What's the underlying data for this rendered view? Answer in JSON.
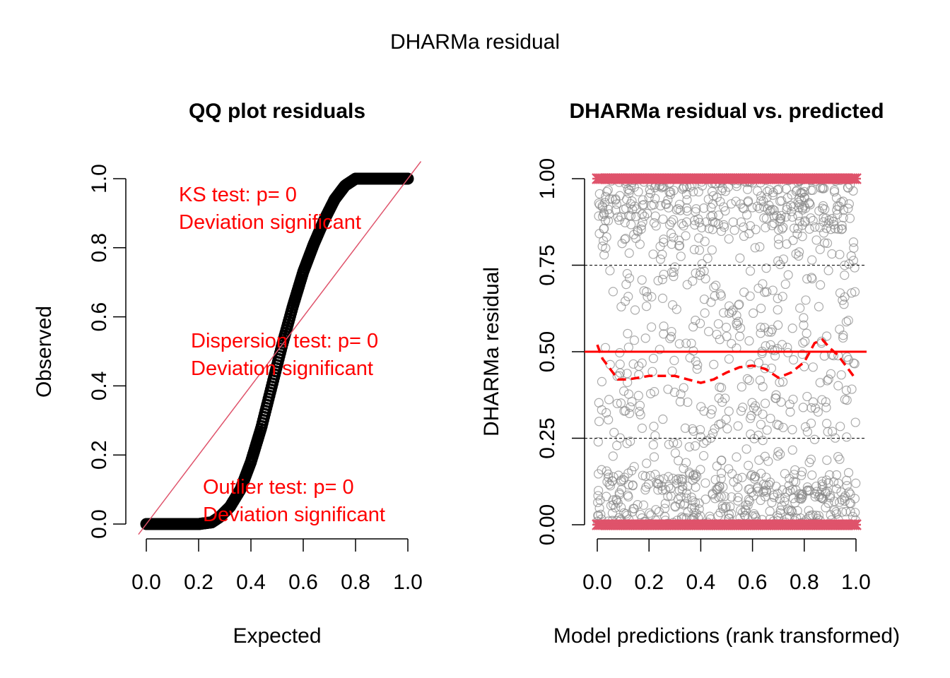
{
  "figure": {
    "suptitle": "DHARMa residual"
  },
  "colors": {
    "points_qq": "#000000",
    "reference_line": "#df536b",
    "test_text": "#ff0000",
    "scatter_points": "#888888",
    "outlier_marks": "#df536b",
    "mean_line": "#ff0000",
    "smooth_line": "#ff0000"
  },
  "chart_data": [
    {
      "type": "scatter",
      "title": "QQ plot residuals",
      "xlabel": "Expected",
      "ylabel": "Observed",
      "xlim": [
        0,
        1
      ],
      "ylim": [
        0,
        1
      ],
      "xticks": [
        "0.0",
        "0.2",
        "0.4",
        "0.6",
        "0.8",
        "1.0"
      ],
      "yticks": [
        "0.0",
        "0.2",
        "0.4",
        "0.6",
        "0.8",
        "1.0"
      ],
      "grid": false,
      "series": [
        {
          "x": [
            0.0,
            0.05,
            0.1,
            0.15,
            0.2,
            0.25,
            0.28,
            0.32,
            0.36,
            0.4,
            0.44,
            0.48,
            0.52,
            0.56,
            0.6,
            0.64,
            0.68,
            0.72,
            0.76,
            0.8,
            0.84,
            0.88,
            0.92,
            0.96,
            1.0
          ],
          "y": [
            0.0,
            0.0,
            0.0,
            0.0,
            0.0,
            0.005,
            0.02,
            0.05,
            0.1,
            0.18,
            0.28,
            0.4,
            0.52,
            0.63,
            0.73,
            0.81,
            0.88,
            0.94,
            0.98,
            1.0,
            1.0,
            1.0,
            1.0,
            1.0,
            1.0
          ]
        }
      ],
      "reference_line": {
        "x": [
          0,
          1
        ],
        "y": [
          0,
          1
        ]
      },
      "annotations": [
        {
          "lines": [
            "KS test: p= 0",
            "Deviation  significant"
          ]
        },
        {
          "lines": [
            "Dispersion test: p= 0",
            "Deviation  significant"
          ]
        },
        {
          "lines": [
            "Outlier test: p= 0",
            "Deviation  significant"
          ]
        }
      ]
    },
    {
      "type": "scatter",
      "title": "DHARMa residual vs. predicted",
      "xlabel": "Model predictions (rank transformed)",
      "ylabel": "DHARMa residual",
      "xlim": [
        0,
        1
      ],
      "ylim": [
        0,
        1
      ],
      "xticks": [
        "0.0",
        "0.2",
        "0.4",
        "0.6",
        "0.8",
        "1.0"
      ],
      "yticks": [
        "0.00",
        "0.25",
        "0.50",
        "0.75",
        "1.00"
      ],
      "grid": false,
      "hlines_dashed": [
        0.25,
        0.75
      ],
      "hline_solid": 0.5,
      "outliers": {
        "at_y": [
          0,
          1
        ]
      },
      "smooth": {
        "x": [
          0.0,
          0.02,
          0.05,
          0.08,
          0.12,
          0.2,
          0.3,
          0.4,
          0.45,
          0.5,
          0.55,
          0.6,
          0.65,
          0.7,
          0.75,
          0.8,
          0.84,
          0.87,
          0.9,
          0.93,
          0.96,
          1.0
        ],
        "y": [
          0.52,
          0.48,
          0.45,
          0.42,
          0.42,
          0.43,
          0.43,
          0.41,
          0.42,
          0.44,
          0.455,
          0.46,
          0.45,
          0.425,
          0.44,
          0.47,
          0.525,
          0.535,
          0.51,
          0.49,
          0.46,
          0.42
        ]
      }
    }
  ]
}
